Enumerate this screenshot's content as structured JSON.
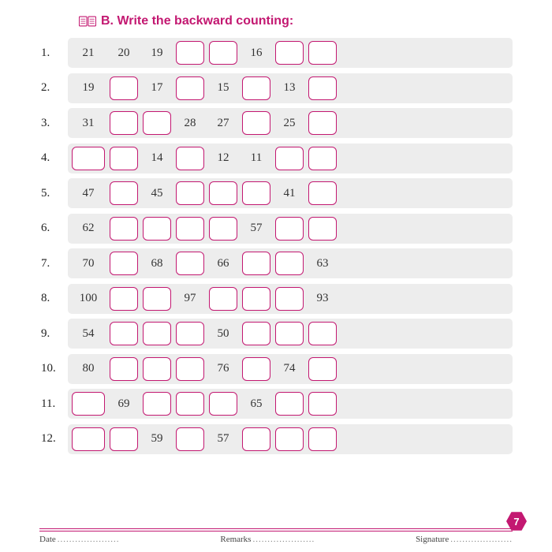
{
  "colors": {
    "accent": "#c31871",
    "row_bg": "#ededed",
    "blank_border": "#c31871",
    "text": "#333333"
  },
  "title": "B. Write the backward counting:",
  "page_number": "7",
  "footer": {
    "date_label": "Date",
    "remarks_label": "Remarks",
    "signature_label": "Signature",
    "dots": "....................."
  },
  "rows": [
    {
      "n": "1.",
      "cells": [
        "21",
        "20",
        "19",
        "",
        "",
        "16",
        "",
        ""
      ]
    },
    {
      "n": "2.",
      "cells": [
        "19",
        "",
        "17",
        "",
        "15",
        "",
        "13",
        ""
      ]
    },
    {
      "n": "3.",
      "cells": [
        "31",
        "",
        "",
        "28",
        "27",
        "",
        "25",
        ""
      ]
    },
    {
      "n": "4.",
      "cells": [
        "",
        "",
        "14",
        "",
        "12",
        "11",
        "",
        ""
      ]
    },
    {
      "n": "5.",
      "cells": [
        "47",
        "",
        "45",
        "",
        "",
        "",
        "41",
        ""
      ]
    },
    {
      "n": "6.",
      "cells": [
        "62",
        "",
        "",
        "",
        "",
        "57",
        "",
        ""
      ]
    },
    {
      "n": "7.",
      "cells": [
        "70",
        "",
        "68",
        "",
        "66",
        "",
        "",
        "63"
      ]
    },
    {
      "n": "8.",
      "cells": [
        "100",
        "",
        "",
        "97",
        "",
        "",
        "",
        "93"
      ]
    },
    {
      "n": "9.",
      "cells": [
        "54",
        "",
        "",
        "",
        "50",
        "",
        "",
        ""
      ]
    },
    {
      "n": "10.",
      "cells": [
        "80",
        "",
        "",
        "",
        "76",
        "",
        "74",
        ""
      ]
    },
    {
      "n": "11.",
      "cells": [
        "",
        "69",
        "",
        "",
        "",
        "65",
        "",
        ""
      ]
    },
    {
      "n": "12.",
      "cells": [
        "",
        "",
        "59",
        "",
        "57",
        "",
        "",
        ""
      ]
    }
  ]
}
